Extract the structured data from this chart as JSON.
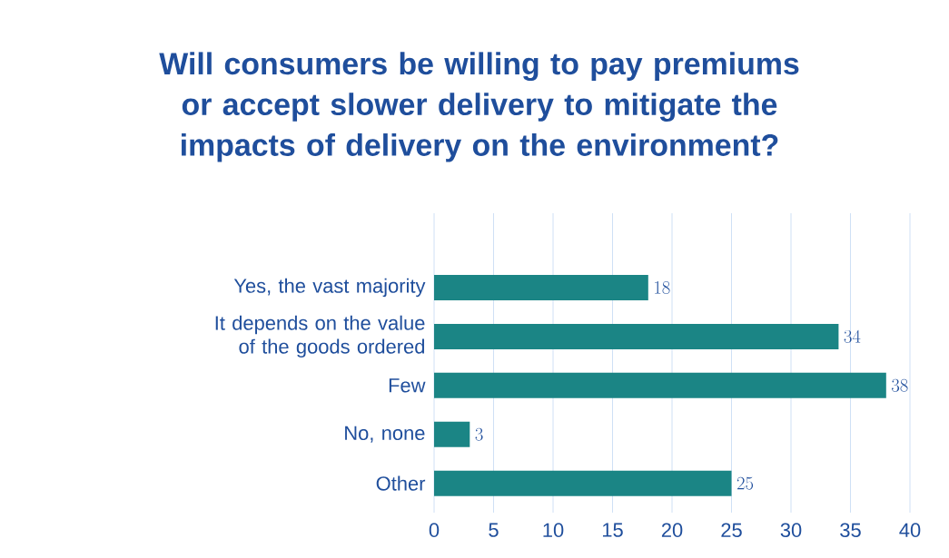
{
  "chart_data": {
    "type": "bar",
    "orientation": "horizontal",
    "title": "Will consumers be willing to pay premiums or accept slower delivery to mitigate the impacts of delivery on the environment?",
    "categories": [
      "Yes, the vast majority",
      "It depends on the value of the goods ordered",
      "Few",
      "No, none",
      "Other"
    ],
    "values": [
      18,
      34,
      38,
      3,
      25
    ],
    "color": "#1b8585",
    "xlim": [
      0,
      40
    ],
    "xticks": [
      0,
      5,
      10,
      15,
      20,
      25,
      30,
      35,
      40
    ],
    "grid": "x",
    "data_labels": true
  }
}
